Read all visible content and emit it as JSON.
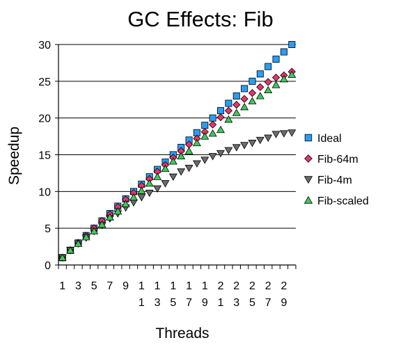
{
  "chart_data": {
    "type": "scatter",
    "title": "GC Effects: Fib",
    "xlabel": "Threads",
    "ylabel": "Speedup",
    "xlim": [
      1,
      30
    ],
    "ylim": [
      0,
      30
    ],
    "y_ticks": [
      0,
      5,
      10,
      15,
      20,
      25,
      30
    ],
    "x_tick_labels": [
      {
        "x": 1,
        "lines": [
          "1"
        ]
      },
      {
        "x": 3,
        "lines": [
          "3"
        ]
      },
      {
        "x": 5,
        "lines": [
          "5"
        ]
      },
      {
        "x": 7,
        "lines": [
          "7"
        ]
      },
      {
        "x": 9,
        "lines": [
          "9"
        ]
      },
      {
        "x": 11,
        "lines": [
          "1",
          "1"
        ]
      },
      {
        "x": 13,
        "lines": [
          "1",
          "3"
        ]
      },
      {
        "x": 15,
        "lines": [
          "1",
          "5"
        ]
      },
      {
        "x": 17,
        "lines": [
          "1",
          "7"
        ]
      },
      {
        "x": 19,
        "lines": [
          "1",
          "9"
        ]
      },
      {
        "x": 21,
        "lines": [
          "2",
          "1"
        ]
      },
      {
        "x": 23,
        "lines": [
          "2",
          "3"
        ]
      },
      {
        "x": 25,
        "lines": [
          "2",
          "5"
        ]
      },
      {
        "x": 27,
        "lines": [
          "2",
          "7"
        ]
      },
      {
        "x": 29,
        "lines": [
          "2",
          "9"
        ]
      }
    ],
    "grid": "horizontal",
    "legend_position": "right",
    "x": [
      1,
      2,
      3,
      4,
      5,
      6,
      7,
      8,
      9,
      10,
      11,
      12,
      13,
      14,
      15,
      16,
      17,
      18,
      19,
      20,
      21,
      22,
      23,
      24,
      25,
      26,
      27,
      28,
      29,
      30
    ],
    "series": [
      {
        "name": "Ideal",
        "marker": "square",
        "color": "#2a9df4",
        "values": [
          1,
          2,
          3,
          4,
          5,
          6,
          7,
          8,
          9,
          10,
          11,
          12,
          13,
          14,
          15,
          16,
          17,
          18,
          19,
          20,
          21,
          22,
          23,
          24,
          25,
          26,
          27,
          28,
          29,
          30
        ]
      },
      {
        "name": "Fib-64m",
        "marker": "diamond",
        "color": "#e8336d",
        "values": [
          1,
          2,
          3,
          4,
          5,
          6,
          6.9,
          7.9,
          8.9,
          9.8,
          10.8,
          11.7,
          12.7,
          13.6,
          14.6,
          15.5,
          16.4,
          17.2,
          18.1,
          19.1,
          20.1,
          21.0,
          21.8,
          22.6,
          23.4,
          24.2,
          24.9,
          25.5,
          25.8,
          26.3
        ]
      },
      {
        "name": "Fib-4m",
        "marker": "triangle-down",
        "color": "#6b6b6b",
        "values": [
          1,
          2,
          2.9,
          3.7,
          4.6,
          5.4,
          6.3,
          7.0,
          7.8,
          8.5,
          9.2,
          9.8,
          10.4,
          11.1,
          12.0,
          12.7,
          13.2,
          13.8,
          14.3,
          14.8,
          15.2,
          15.6,
          16.0,
          16.3,
          16.6,
          17.0,
          17.3,
          17.8,
          17.9,
          18.0
        ]
      },
      {
        "name": "Fib-scaled",
        "marker": "triangle-up",
        "color": "#3ec95a",
        "values": [
          1,
          2,
          2.9,
          3.8,
          4.6,
          5.5,
          6.5,
          7.3,
          8.3,
          9.2,
          10.1,
          11.1,
          12.0,
          13.1,
          14.1,
          14.8,
          15.5,
          16.6,
          17.5,
          17.9,
          18.4,
          19.8,
          20.7,
          21.5,
          22.3,
          23.0,
          23.8,
          24.5,
          25.3,
          25.9
        ]
      }
    ]
  }
}
